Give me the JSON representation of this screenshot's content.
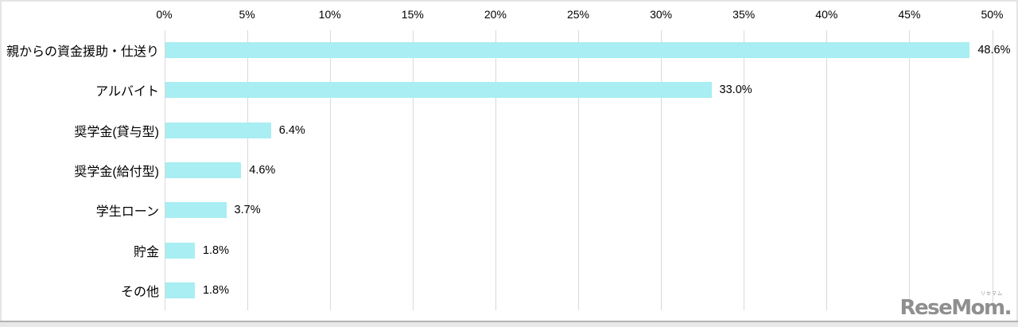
{
  "chart_data": {
    "type": "bar",
    "orientation": "horizontal",
    "title": "",
    "xlabel": "",
    "ylabel": "",
    "categories": [
      "親からの資金援助・仕送り",
      "アルバイト",
      "奨学金(貸与型)",
      "奨学金(給付型)",
      "学生ローン",
      "貯金",
      "その他"
    ],
    "values": [
      48.6,
      33.0,
      6.4,
      4.6,
      3.7,
      1.8,
      1.8
    ],
    "value_labels": [
      "48.6%",
      "33.0%",
      "6.4%",
      "4.6%",
      "3.7%",
      "1.8%",
      "1.8%"
    ],
    "x_ticks": [
      "0%",
      "5%",
      "10%",
      "15%",
      "20%",
      "25%",
      "30%",
      "35%",
      "40%",
      "45%",
      "50%"
    ],
    "x_tick_values": [
      0,
      5,
      10,
      15,
      20,
      25,
      30,
      35,
      40,
      45,
      50
    ],
    "xlim": [
      0,
      50
    ],
    "grid": "vertical",
    "legend": "none",
    "bar_color": "#a8eef2",
    "gridline_color": "#d9d9d9",
    "text_color": "#000000"
  },
  "watermark": {
    "logo_text": "ReseMom.",
    "logo_ruby": "リセマム",
    "color": "#8f8f8f"
  }
}
